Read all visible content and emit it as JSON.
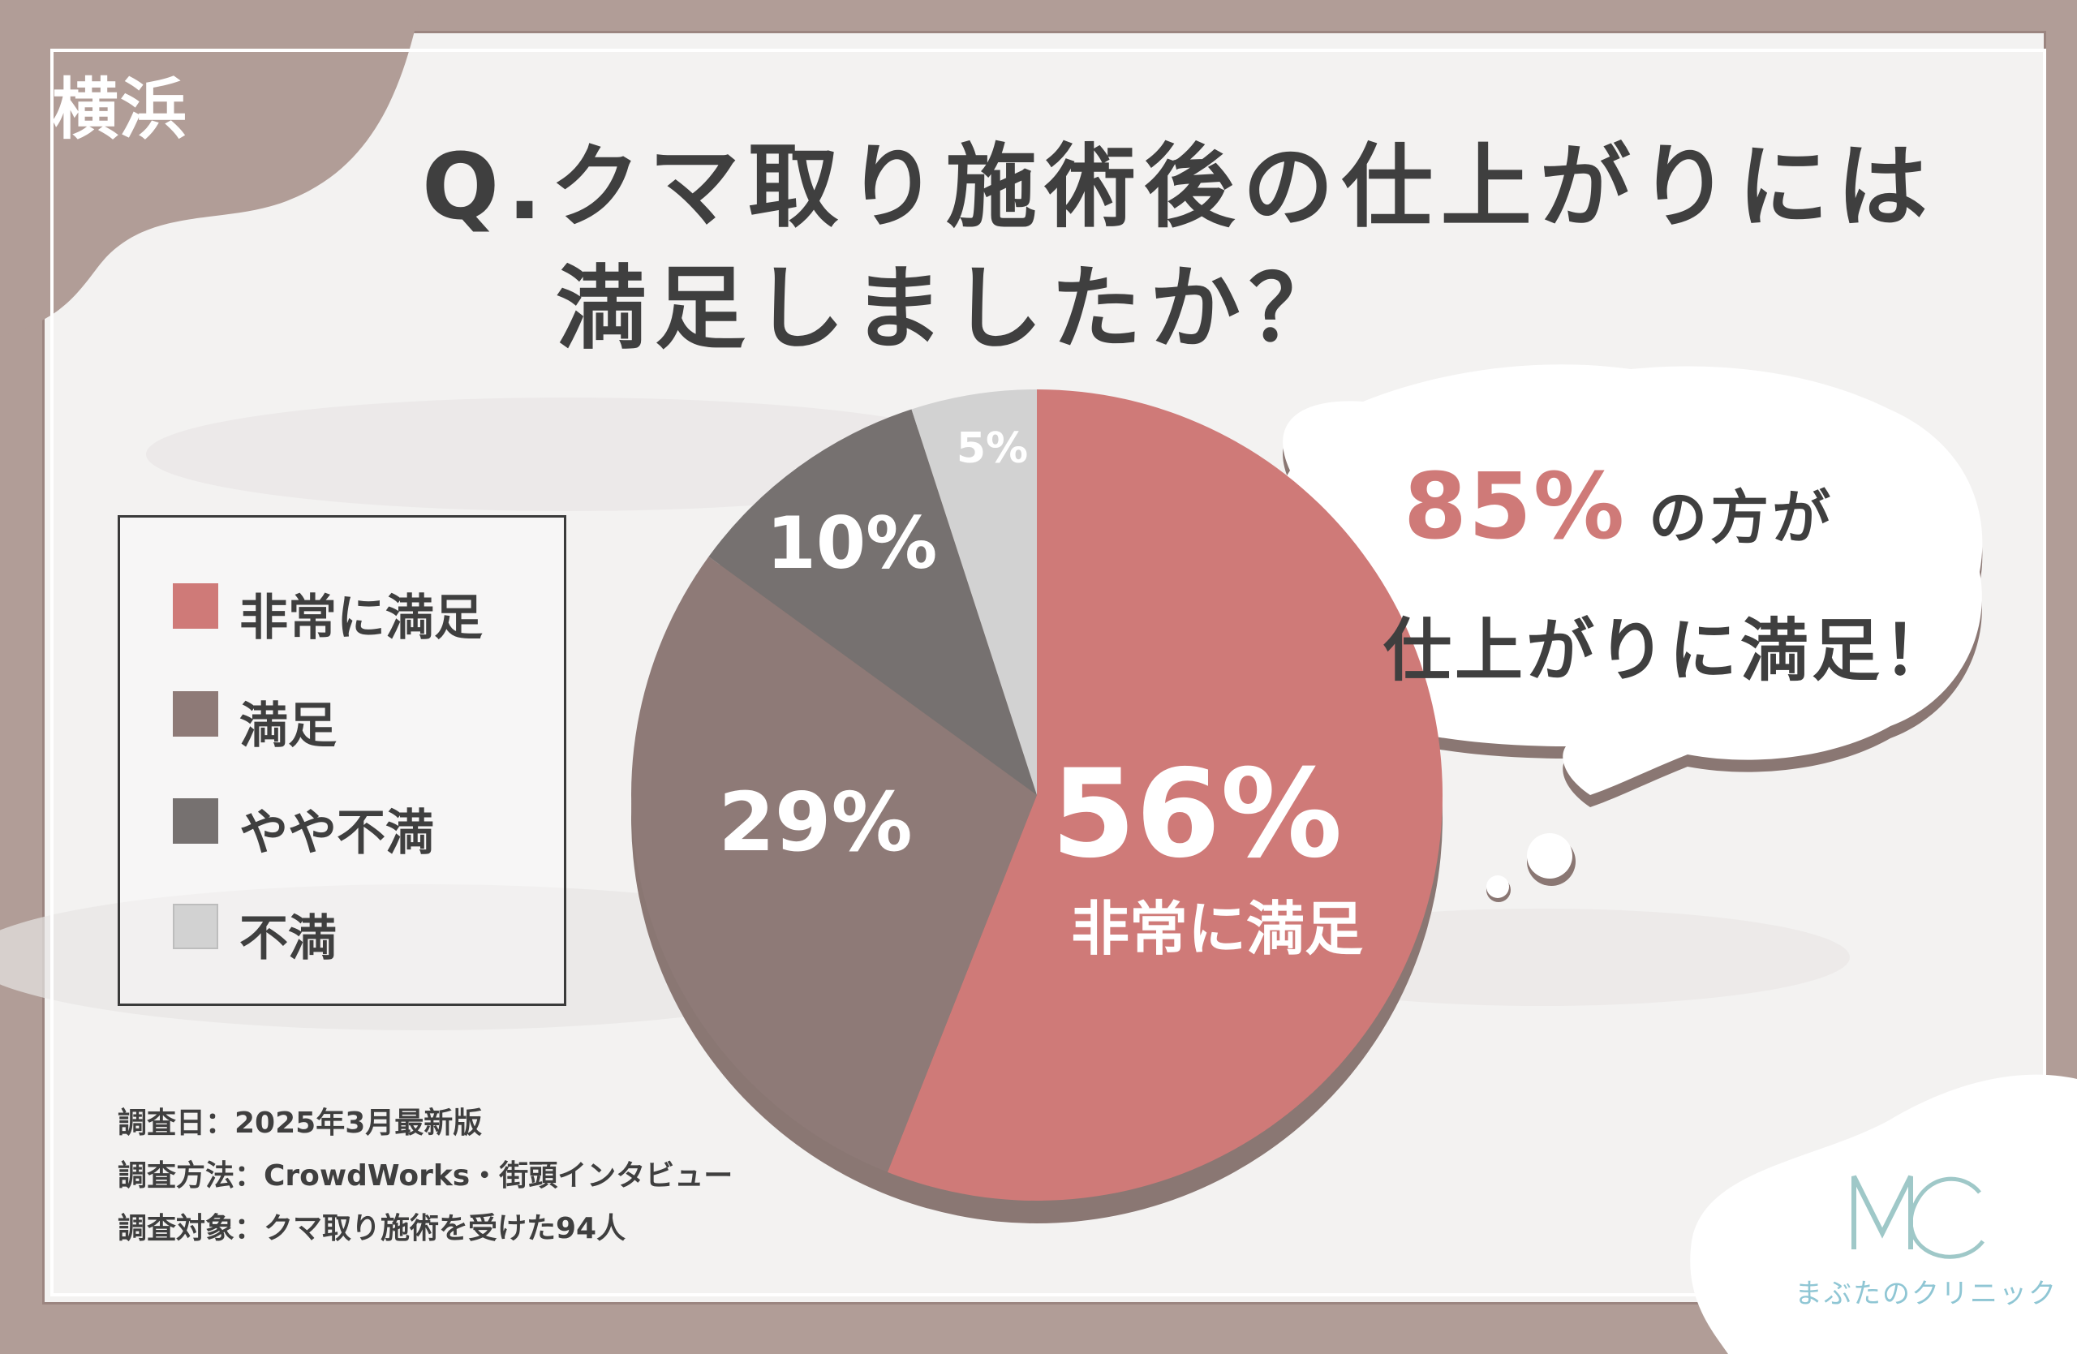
{
  "city": "横浜",
  "question": {
    "line1": "Q.クマ取り施術後の仕上がりには",
    "line2": "満足しましたか？"
  },
  "legend": [
    {
      "label": "非常に満足",
      "color": "#cf7a78"
    },
    {
      "label": "満足",
      "color": "#8e7a77"
    },
    {
      "label": "やや不満",
      "color": "#767170"
    },
    {
      "label": "不満",
      "color": "#d2d2d2"
    }
  ],
  "chart_data": {
    "type": "pie",
    "categories": [
      "非常に満足",
      "満足",
      "やや不満",
      "不満"
    ],
    "values": [
      56,
      29,
      10,
      5
    ],
    "labels": [
      "56%",
      "29%",
      "10%",
      "5%"
    ],
    "highlight_label": "非常に満足",
    "colors": [
      "#cf7a78",
      "#8e7a77",
      "#767170",
      "#d2d2d2"
    ],
    "shadow_color": "#8a7773"
  },
  "bubble": {
    "percent": "85%",
    "line1_rest": "の方が",
    "line2": "仕上がりに満足！"
  },
  "notes": {
    "date": "調査日：2025年3月最新版",
    "method": "調査方法：CrowdWorks・街頭インタビュー",
    "target": "調査対象：クマ取り施術を受けた94人"
  },
  "clinic": {
    "logo_text": "MC",
    "name": "まぶたのクリニック",
    "logo_color": "#9fc8c8"
  }
}
